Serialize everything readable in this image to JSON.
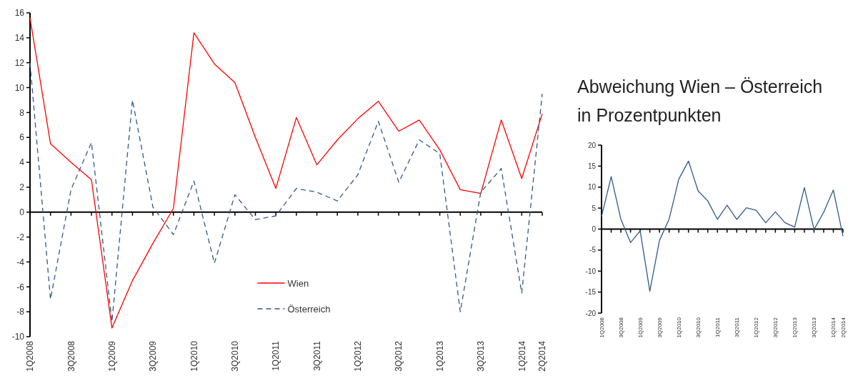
{
  "chart_data": [
    {
      "type": "line",
      "categories": [
        "1Q2008",
        null,
        "3Q2008",
        null,
        "1Q2009",
        null,
        "3Q2009",
        null,
        "1Q2010",
        null,
        "3Q2010",
        null,
        "1Q2011",
        null,
        "3Q2011",
        null,
        "1Q2012",
        null,
        "3Q2012",
        null,
        "1Q2013",
        null,
        "3Q2013",
        null,
        "1Q2014",
        "2Q2014"
      ],
      "series": [
        {
          "name": "Wien",
          "color": "#ff0000",
          "line_style": "solid",
          "values": [
            15.6,
            5.5,
            4.0,
            2.6,
            -9.3,
            -5.5,
            -2.5,
            0.3,
            14.4,
            11.9,
            10.4,
            6.0,
            1.9,
            7.6,
            3.8,
            5.8,
            7.5,
            8.9,
            6.5,
            7.4,
            5.0,
            1.8,
            1.5,
            7.4,
            2.7,
            7.9
          ]
        },
        {
          "name": "Österreich",
          "color": "#2e5a8c",
          "line_style": "dashed",
          "values": [
            12.0,
            -7.0,
            1.8,
            5.6,
            -8.8,
            9.0,
            0.4,
            -1.8,
            2.5,
            -4.1,
            1.4,
            -0.6,
            -0.3,
            1.9,
            1.6,
            0.9,
            3.0,
            7.3,
            2.4,
            5.8,
            4.7,
            -8.0,
            1.6,
            3.5,
            -6.5,
            9.5
          ]
        }
      ],
      "ylim": [
        -10,
        16
      ],
      "yticks": [
        -10,
        -8,
        -6,
        -4,
        -2,
        0,
        2,
        4,
        6,
        8,
        10,
        12,
        14,
        16
      ],
      "legend": "bottom",
      "marker": "none"
    },
    {
      "type": "line",
      "title": "Abweichung Wien – Österreich\nin Prozentpunkten",
      "categories": [
        "1Q2008",
        null,
        "3Q2008",
        null,
        "1Q2009",
        null,
        "3Q2009",
        null,
        "1Q2010",
        null,
        "3Q2010",
        null,
        "1Q2011",
        null,
        "3Q2011",
        null,
        "1Q2012",
        null,
        "3Q2012",
        null,
        "1Q2013",
        null,
        "3Q2013",
        null,
        "1Q2014",
        "2Q2014"
      ],
      "series": [
        {
          "color": "#2e5a8c",
          "values": [
            3.0,
            12.5,
            2.4,
            -3.2,
            -0.4,
            -14.8,
            -2.7,
            2.4,
            11.9,
            16.2,
            9.1,
            6.7,
            2.3,
            5.7,
            2.3,
            5.1,
            4.5,
            1.5,
            4.1,
            1.5,
            0.5,
            9.9,
            -0.1,
            4.0,
            9.3,
            -1.7
          ]
        }
      ],
      "ylim": [
        -20,
        20
      ],
      "yticks": [
        -20,
        -15,
        -10,
        -5,
        0,
        5,
        10,
        15,
        20
      ],
      "legend": false,
      "marker": "none",
      "line_style": "solid"
    }
  ]
}
